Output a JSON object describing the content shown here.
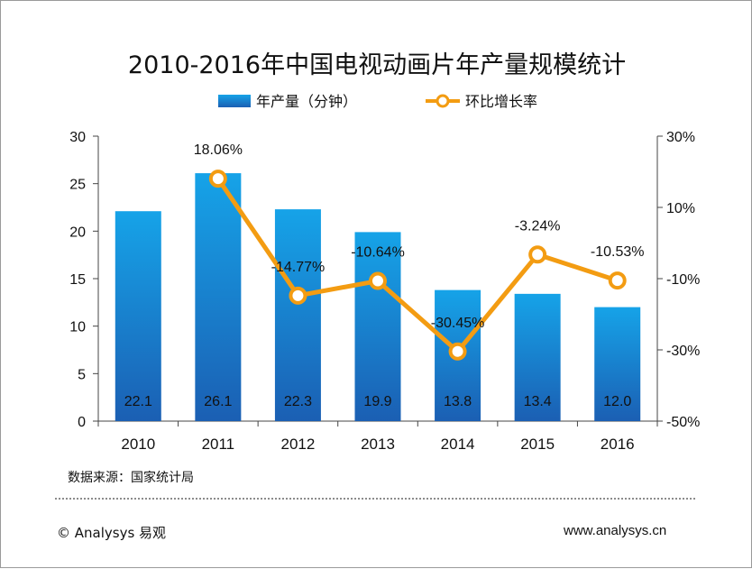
{
  "chart_data": {
    "type": "bar",
    "title": "2010-2016年中国电视动画片年产量规模统计",
    "categories": [
      "2010",
      "2011",
      "2012",
      "2013",
      "2014",
      "2015",
      "2016"
    ],
    "series": [
      {
        "name": "年产量（分钟）",
        "type": "bar",
        "axis": "left",
        "color": "#1a78c8",
        "values": [
          22.1,
          26.1,
          22.3,
          19.9,
          13.8,
          13.4,
          12.0
        ],
        "labels": [
          "22.1",
          "26.1",
          "22.3",
          "19.9",
          "13.8",
          "13.4",
          "12.0"
        ]
      },
      {
        "name": "环比增长率",
        "type": "line",
        "axis": "right",
        "color": "#f39c12",
        "values": [
          null,
          18.06,
          -14.77,
          -10.64,
          -30.45,
          -3.24,
          -10.53
        ],
        "labels": [
          "",
          "18.06%",
          "-14.77%",
          "-10.64%",
          "-30.45%",
          "-3.24%",
          "-10.53%"
        ]
      }
    ],
    "y_left": {
      "min": 0,
      "max": 30,
      "ticks": [
        "0",
        "5",
        "10",
        "15",
        "20",
        "25",
        "30"
      ]
    },
    "y_right": {
      "min": -50,
      "max": 30,
      "ticks": [
        "-50%",
        "-30%",
        "-10%",
        "10%",
        "30%"
      ]
    },
    "grid": false,
    "legend": "top-center"
  },
  "footer": {
    "source": "数据来源：国家统计局",
    "copyright": "© Analysys 易观",
    "website": "www.analysys.cn"
  }
}
